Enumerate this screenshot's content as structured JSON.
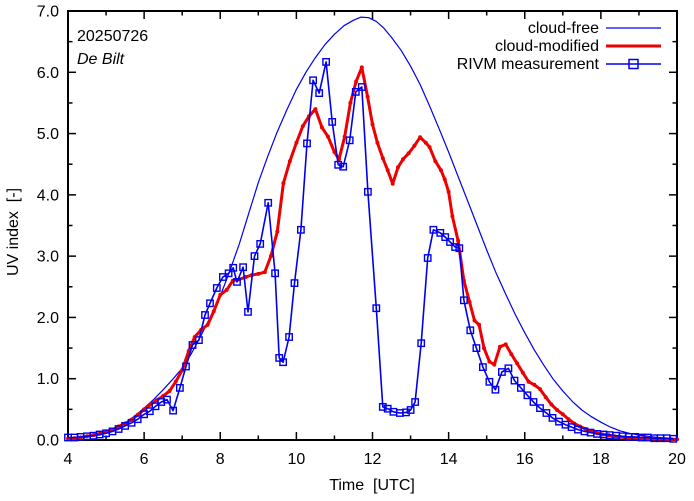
{
  "chart_data": {
    "type": "line",
    "annotations": {
      "date": "20250726",
      "station": "De Bilt"
    },
    "xlabel": "Time  [UTC]",
    "ylabel": "UV index  [-]",
    "xlim": [
      4,
      20
    ],
    "ylim": [
      0,
      7
    ],
    "x_major_ticks": [
      4,
      6,
      8,
      10,
      12,
      14,
      16,
      18,
      20
    ],
    "x_minor_ticks": [
      5,
      7,
      9,
      11,
      13,
      15,
      17,
      19
    ],
    "y_major_ticks": [
      0,
      1,
      2,
      3,
      4,
      5,
      6,
      7
    ],
    "y_minor_ticks": [
      0.5,
      1.5,
      2.5,
      3.5,
      4.5,
      5.5,
      6.5
    ],
    "grid": false,
    "legend_position": "top-right",
    "series": [
      {
        "name": "cloud-free",
        "color": "#0000ee",
        "width": 1.2,
        "marker": "none",
        "points": [
          [
            4,
            0.02
          ],
          [
            4.25,
            0.03
          ],
          [
            4.5,
            0.05
          ],
          [
            4.75,
            0.08
          ],
          [
            5,
            0.12
          ],
          [
            5.25,
            0.19
          ],
          [
            5.5,
            0.28
          ],
          [
            5.75,
            0.39
          ],
          [
            6,
            0.52
          ],
          [
            6.25,
            0.66
          ],
          [
            6.5,
            0.82
          ],
          [
            6.75,
            0.99
          ],
          [
            7,
            1.17
          ],
          [
            7.25,
            1.42
          ],
          [
            7.5,
            1.71
          ],
          [
            7.75,
            2.02
          ],
          [
            8,
            2.35
          ],
          [
            8.25,
            2.76
          ],
          [
            8.5,
            3.2
          ],
          [
            8.75,
            3.7
          ],
          [
            9,
            4.2
          ],
          [
            9.25,
            4.63
          ],
          [
            9.5,
            5.03
          ],
          [
            9.75,
            5.39
          ],
          [
            10,
            5.72
          ],
          [
            10.25,
            6.0
          ],
          [
            10.5,
            6.24
          ],
          [
            10.75,
            6.45
          ],
          [
            11,
            6.62
          ],
          [
            11.25,
            6.76
          ],
          [
            11.5,
            6.85
          ],
          [
            11.7,
            6.9
          ],
          [
            11.9,
            6.89
          ],
          [
            12.1,
            6.83
          ],
          [
            12.3,
            6.72
          ],
          [
            12.5,
            6.57
          ],
          [
            12.75,
            6.36
          ],
          [
            13,
            6.1
          ],
          [
            13.25,
            5.8
          ],
          [
            13.5,
            5.45
          ],
          [
            13.75,
            5.08
          ],
          [
            14,
            4.7
          ],
          [
            14.25,
            4.3
          ],
          [
            14.5,
            3.9
          ],
          [
            14.75,
            3.5
          ],
          [
            15,
            3.1
          ],
          [
            15.25,
            2.72
          ],
          [
            15.5,
            2.38
          ],
          [
            15.75,
            2.05
          ],
          [
            16,
            1.75
          ],
          [
            16.25,
            1.47
          ],
          [
            16.5,
            1.22
          ],
          [
            16.75,
            0.99
          ],
          [
            17,
            0.8
          ],
          [
            17.25,
            0.63
          ],
          [
            17.5,
            0.49
          ],
          [
            17.75,
            0.38
          ],
          [
            18,
            0.29
          ],
          [
            18.25,
            0.21
          ],
          [
            18.5,
            0.15
          ],
          [
            18.75,
            0.11
          ],
          [
            19,
            0.08
          ],
          [
            19.25,
            0.06
          ],
          [
            19.5,
            0.04
          ],
          [
            19.75,
            0.03
          ],
          [
            20,
            0.02
          ]
        ]
      },
      {
        "name": "cloud-modified",
        "color": "#ee0000",
        "width": 3,
        "marker": "dot",
        "points": [
          [
            4,
            0.02
          ],
          [
            4.17,
            0.03
          ],
          [
            4.33,
            0.04
          ],
          [
            4.5,
            0.06
          ],
          [
            4.67,
            0.08
          ],
          [
            4.83,
            0.1
          ],
          [
            5,
            0.13
          ],
          [
            5.17,
            0.17
          ],
          [
            5.33,
            0.22
          ],
          [
            5.5,
            0.27
          ],
          [
            5.67,
            0.33
          ],
          [
            5.83,
            0.41
          ],
          [
            6,
            0.5
          ],
          [
            6.17,
            0.58
          ],
          [
            6.33,
            0.65
          ],
          [
            6.5,
            0.72
          ],
          [
            6.67,
            0.8
          ],
          [
            6.83,
            0.95
          ],
          [
            7,
            1.14
          ],
          [
            7.17,
            1.45
          ],
          [
            7.33,
            1.68
          ],
          [
            7.5,
            1.8
          ],
          [
            7.67,
            1.88
          ],
          [
            7.83,
            2.1
          ],
          [
            8,
            2.37
          ],
          [
            8.17,
            2.45
          ],
          [
            8.33,
            2.6
          ],
          [
            8.5,
            2.62
          ],
          [
            8.67,
            2.66
          ],
          [
            8.83,
            2.69
          ],
          [
            9,
            2.71
          ],
          [
            9.17,
            2.74
          ],
          [
            9.33,
            3.0
          ],
          [
            9.5,
            3.4
          ],
          [
            9.66,
            4.19
          ],
          [
            9.83,
            4.55
          ],
          [
            10,
            4.85
          ],
          [
            10.17,
            5.12
          ],
          [
            10.33,
            5.28
          ],
          [
            10.5,
            5.4
          ],
          [
            10.67,
            5.1
          ],
          [
            10.83,
            4.95
          ],
          [
            11,
            4.7
          ],
          [
            11.12,
            4.58
          ],
          [
            11.27,
            4.95
          ],
          [
            11.42,
            5.5
          ],
          [
            11.57,
            5.85
          ],
          [
            11.72,
            6.08
          ],
          [
            11.87,
            5.6
          ],
          [
            12,
            5.15
          ],
          [
            12.13,
            4.85
          ],
          [
            12.27,
            4.6
          ],
          [
            12.4,
            4.4
          ],
          [
            12.53,
            4.18
          ],
          [
            12.67,
            4.45
          ],
          [
            12.8,
            4.58
          ],
          [
            12.95,
            4.68
          ],
          [
            13.1,
            4.8
          ],
          [
            13.25,
            4.94
          ],
          [
            13.4,
            4.85
          ],
          [
            13.5,
            4.78
          ],
          [
            13.65,
            4.55
          ],
          [
            13.8,
            4.4
          ],
          [
            13.9,
            4.25
          ],
          [
            14,
            4.05
          ],
          [
            14.1,
            3.65
          ],
          [
            14.25,
            3.25
          ],
          [
            14.4,
            2.6
          ],
          [
            14.55,
            2.25
          ],
          [
            14.68,
            1.95
          ],
          [
            14.8,
            1.88
          ],
          [
            14.93,
            1.5
          ],
          [
            15.07,
            1.28
          ],
          [
            15.2,
            1.23
          ],
          [
            15.35,
            1.52
          ],
          [
            15.5,
            1.56
          ],
          [
            15.65,
            1.4
          ],
          [
            15.8,
            1.25
          ],
          [
            15.95,
            1.1
          ],
          [
            16.1,
            0.95
          ],
          [
            16.25,
            0.9
          ],
          [
            16.4,
            0.83
          ],
          [
            16.55,
            0.7
          ],
          [
            16.7,
            0.58
          ],
          [
            16.85,
            0.49
          ],
          [
            17,
            0.42
          ],
          [
            17.15,
            0.34
          ],
          [
            17.3,
            0.27
          ],
          [
            17.45,
            0.22
          ],
          [
            17.6,
            0.18
          ],
          [
            17.75,
            0.14
          ],
          [
            17.9,
            0.11
          ],
          [
            18.05,
            0.09
          ],
          [
            18.2,
            0.08
          ],
          [
            18.35,
            0.06
          ],
          [
            18.5,
            0.05
          ],
          [
            18.65,
            0.04
          ],
          [
            18.8,
            0.04
          ],
          [
            18.95,
            0.03
          ],
          [
            19.1,
            0.03
          ],
          [
            19.25,
            0.02
          ],
          [
            19.4,
            0.02
          ],
          [
            19.55,
            0.02
          ],
          [
            19.7,
            0.01
          ],
          [
            19.85,
            0.01
          ],
          [
            20,
            0.01
          ]
        ]
      },
      {
        "name": "RIVM measurement",
        "color": "#0000ee",
        "width": 1.6,
        "marker": "square",
        "points": [
          [
            4,
            0.04
          ],
          [
            4.17,
            0.04
          ],
          [
            4.33,
            0.05
          ],
          [
            4.5,
            0.06
          ],
          [
            4.67,
            0.07
          ],
          [
            4.83,
            0.09
          ],
          [
            5,
            0.11
          ],
          [
            5.17,
            0.14
          ],
          [
            5.33,
            0.18
          ],
          [
            5.5,
            0.23
          ],
          [
            5.67,
            0.28
          ],
          [
            5.83,
            0.34
          ],
          [
            6,
            0.42
          ],
          [
            6.15,
            0.47
          ],
          [
            6.3,
            0.55
          ],
          [
            6.45,
            0.62
          ],
          [
            6.6,
            0.66
          ],
          [
            6.76,
            0.48
          ],
          [
            6.94,
            0.85
          ],
          [
            7.1,
            1.2
          ],
          [
            7.27,
            1.55
          ],
          [
            7.44,
            1.63
          ],
          [
            7.6,
            2.04
          ],
          [
            7.73,
            2.23
          ],
          [
            7.91,
            2.48
          ],
          [
            8.07,
            2.66
          ],
          [
            8.22,
            2.72
          ],
          [
            8.34,
            2.81
          ],
          [
            8.44,
            2.58
          ],
          [
            8.6,
            2.82
          ],
          [
            8.73,
            2.09
          ],
          [
            8.9,
            3.0
          ],
          [
            9.05,
            3.2
          ],
          [
            9.26,
            3.87
          ],
          [
            9.44,
            2.72
          ],
          [
            9.55,
            1.34
          ],
          [
            9.65,
            1.27
          ],
          [
            9.81,
            1.68
          ],
          [
            9.95,
            2.56
          ],
          [
            10.12,
            3.43
          ],
          [
            10.28,
            4.84
          ],
          [
            10.44,
            5.87
          ],
          [
            10.6,
            5.66
          ],
          [
            10.78,
            6.17
          ],
          [
            10.94,
            5.19
          ],
          [
            11.1,
            4.49
          ],
          [
            11.23,
            4.46
          ],
          [
            11.4,
            4.89
          ],
          [
            11.56,
            5.68
          ],
          [
            11.72,
            5.76
          ],
          [
            11.88,
            4.05
          ],
          [
            12.1,
            2.15
          ],
          [
            12.27,
            0.54
          ],
          [
            12.4,
            0.51
          ],
          [
            12.55,
            0.46
          ],
          [
            12.72,
            0.44
          ],
          [
            12.88,
            0.45
          ],
          [
            13,
            0.49
          ],
          [
            13.12,
            0.62
          ],
          [
            13.28,
            1.58
          ],
          [
            13.45,
            2.97
          ],
          [
            13.6,
            3.43
          ],
          [
            13.78,
            3.38
          ],
          [
            13.91,
            3.31
          ],
          [
            14.04,
            3.23
          ],
          [
            14.17,
            3.15
          ],
          [
            14.28,
            3.13
          ],
          [
            14.4,
            2.28
          ],
          [
            14.57,
            1.79
          ],
          [
            14.73,
            1.5
          ],
          [
            14.9,
            1.19
          ],
          [
            15.07,
            0.95
          ],
          [
            15.23,
            0.82
          ],
          [
            15.4,
            1.11
          ],
          [
            15.57,
            1.17
          ],
          [
            15.73,
            0.97
          ],
          [
            15.9,
            0.85
          ],
          [
            16.07,
            0.73
          ],
          [
            16.23,
            0.62
          ],
          [
            16.4,
            0.52
          ],
          [
            16.57,
            0.44
          ],
          [
            16.73,
            0.36
          ],
          [
            16.9,
            0.3
          ],
          [
            17.07,
            0.25
          ],
          [
            17.23,
            0.21
          ],
          [
            17.4,
            0.17
          ],
          [
            17.57,
            0.14
          ],
          [
            17.73,
            0.12
          ],
          [
            17.9,
            0.1
          ],
          [
            18.07,
            0.09
          ],
          [
            18.23,
            0.08
          ],
          [
            18.4,
            0.07
          ],
          [
            18.57,
            0.06
          ],
          [
            18.73,
            0.05
          ],
          [
            18.9,
            0.05
          ],
          [
            19.07,
            0.04
          ],
          [
            19.23,
            0.04
          ],
          [
            19.4,
            0.03
          ],
          [
            19.57,
            0.03
          ],
          [
            19.73,
            0.03
          ],
          [
            19.9,
            0.02
          ]
        ]
      }
    ]
  }
}
